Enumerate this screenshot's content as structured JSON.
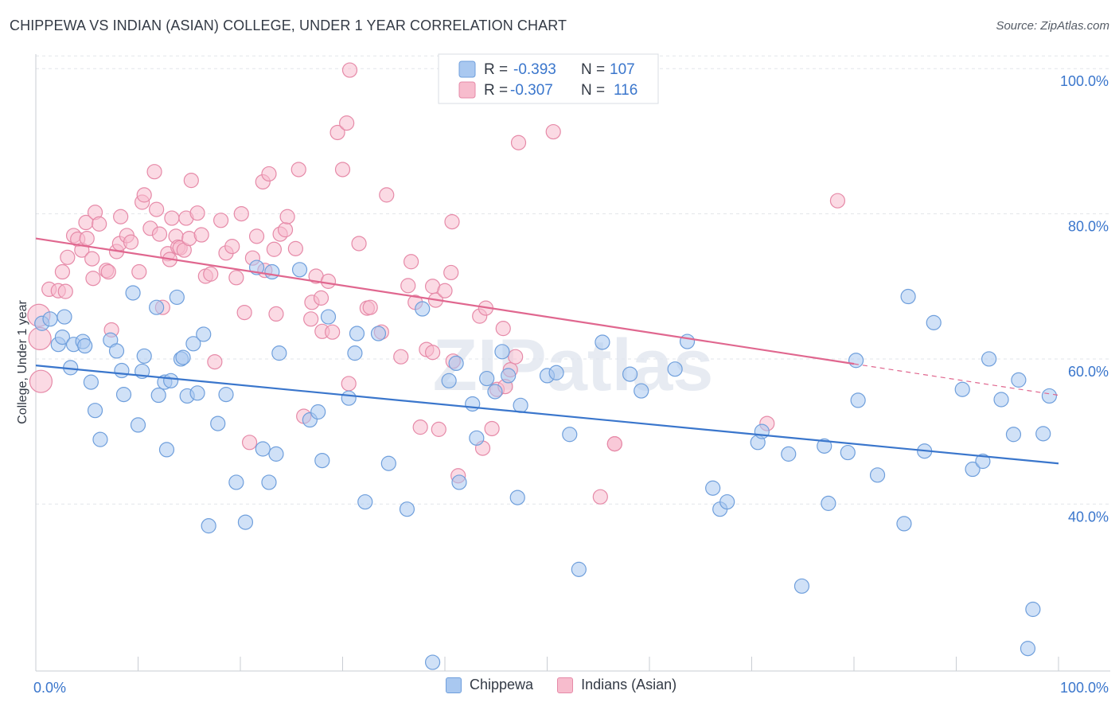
{
  "title": "CHIPPEWA VS INDIAN (ASIAN) COLLEGE, UNDER 1 YEAR CORRELATION CHART",
  "source": "Source: ZipAtlas.com",
  "watermark": "ZIPatlas",
  "colors": {
    "blue_fill": "#a9c8f0",
    "blue_stroke": "#6f9fdc",
    "blue_line": "#3a76cc",
    "pink_fill": "#f7bccd",
    "pink_stroke": "#e68aa8",
    "pink_line": "#e0678f",
    "tick_text": "#3a76cc",
    "grid": "#e2e5ea"
  },
  "legend_top": {
    "rows": [
      {
        "r_label": "R =",
        "r_value": "-0.393",
        "n_label": "N =",
        "n_value": "107"
      },
      {
        "r_label": "R =",
        "r_value": "-0.307",
        "n_label": "N =",
        "n_value": "116"
      }
    ]
  },
  "chart_data": {
    "type": "scatter",
    "title": "CHIPPEWA VS INDIAN (ASIAN) COLLEGE, UNDER 1 YEAR CORRELATION CHART",
    "xlabel": "",
    "ylabel": "College, Under 1 year",
    "xlim": [
      0,
      100
    ],
    "ylim": [
      17,
      102
    ],
    "x_tick_labels": [
      "0.0%",
      "100.0%"
    ],
    "y_ticks": [
      40,
      60,
      80,
      100
    ],
    "y_tick_labels": [
      "40.0%",
      "60.0%",
      "80.0%",
      "100.0%"
    ],
    "grid": true,
    "legend_position": "top-center",
    "series": [
      {
        "name": "Chippewa",
        "color": "#a9c8f0",
        "trend": {
          "x": [
            0,
            100
          ],
          "y": [
            59.1,
            45.6
          ],
          "dashed_from": null
        },
        "points": [
          [
            0.6,
            64.9
          ],
          [
            1.4,
            65.5
          ],
          [
            2.2,
            62.0
          ],
          [
            2.6,
            63.0
          ],
          [
            2.8,
            65.8
          ],
          [
            3.4,
            58.8
          ],
          [
            3.7,
            62.0
          ],
          [
            4.6,
            62.4
          ],
          [
            4.8,
            61.8
          ],
          [
            5.4,
            56.8
          ],
          [
            5.8,
            52.9
          ],
          [
            6.3,
            48.9
          ],
          [
            7.3,
            62.6
          ],
          [
            7.9,
            61.1
          ],
          [
            8.4,
            58.4
          ],
          [
            8.6,
            55.1
          ],
          [
            9.5,
            69.1
          ],
          [
            10.0,
            50.9
          ],
          [
            10.4,
            58.3
          ],
          [
            10.6,
            60.4
          ],
          [
            11.8,
            67.1
          ],
          [
            12.0,
            55.0
          ],
          [
            12.6,
            56.8
          ],
          [
            12.8,
            47.5
          ],
          [
            13.2,
            57.0
          ],
          [
            13.8,
            68.5
          ],
          [
            14.2,
            60.0
          ],
          [
            14.4,
            60.2
          ],
          [
            14.8,
            54.9
          ],
          [
            15.4,
            62.1
          ],
          [
            15.8,
            55.3
          ],
          [
            16.4,
            63.4
          ],
          [
            16.9,
            37.0
          ],
          [
            17.8,
            51.1
          ],
          [
            18.6,
            55.1
          ],
          [
            19.6,
            43.0
          ],
          [
            20.5,
            37.5
          ],
          [
            21.6,
            72.6
          ],
          [
            22.2,
            47.6
          ],
          [
            22.8,
            43.0
          ],
          [
            23.5,
            46.9
          ],
          [
            23.1,
            72.0
          ],
          [
            23.8,
            60.8
          ],
          [
            25.8,
            72.3
          ],
          [
            26.8,
            51.6
          ],
          [
            27.6,
            52.7
          ],
          [
            28.0,
            46.0
          ],
          [
            28.6,
            65.8
          ],
          [
            30.6,
            54.6
          ],
          [
            31.2,
            60.8
          ],
          [
            31.4,
            63.5
          ],
          [
            32.2,
            40.3
          ],
          [
            33.5,
            63.5
          ],
          [
            34.5,
            45.6
          ],
          [
            36.3,
            39.3
          ],
          [
            37.8,
            66.9
          ],
          [
            38.8,
            18.2
          ],
          [
            40.4,
            57.0
          ],
          [
            41.1,
            59.4
          ],
          [
            41.4,
            43.0
          ],
          [
            42.7,
            53.8
          ],
          [
            43.1,
            49.1
          ],
          [
            44.1,
            57.3
          ],
          [
            44.9,
            55.5
          ],
          [
            45.6,
            61.0
          ],
          [
            46.2,
            57.7
          ],
          [
            47.1,
            40.9
          ],
          [
            47.4,
            53.6
          ],
          [
            50.0,
            57.7
          ],
          [
            50.9,
            58.1
          ],
          [
            52.2,
            49.6
          ],
          [
            53.1,
            31.0
          ],
          [
            55.4,
            62.3
          ],
          [
            58.1,
            57.9
          ],
          [
            59.2,
            55.6
          ],
          [
            62.5,
            58.6
          ],
          [
            63.7,
            62.4
          ],
          [
            66.2,
            42.2
          ],
          [
            66.9,
            39.3
          ],
          [
            67.6,
            40.3
          ],
          [
            70.6,
            48.5
          ],
          [
            71.0,
            50.0
          ],
          [
            73.6,
            46.9
          ],
          [
            74.9,
            28.7
          ],
          [
            77.1,
            48.0
          ],
          [
            77.5,
            40.1
          ],
          [
            79.4,
            47.1
          ],
          [
            80.2,
            59.8
          ],
          [
            80.4,
            54.3
          ],
          [
            82.3,
            44.0
          ],
          [
            84.9,
            37.3
          ],
          [
            85.3,
            68.6
          ],
          [
            86.9,
            47.3
          ],
          [
            87.8,
            65.0
          ],
          [
            90.6,
            55.8
          ],
          [
            91.6,
            44.8
          ],
          [
            92.6,
            45.9
          ],
          [
            93.2,
            60.0
          ],
          [
            94.4,
            54.4
          ],
          [
            95.6,
            49.6
          ],
          [
            96.1,
            57.1
          ],
          [
            97.5,
            25.5
          ],
          [
            98.5,
            49.7
          ],
          [
            99.1,
            54.9
          ],
          [
            97.0,
            20.1
          ]
        ]
      },
      {
        "name": "Indians (Asian)",
        "color": "#f7bccd",
        "trend": {
          "x": [
            0,
            100
          ],
          "y": [
            76.6,
            55.0
          ],
          "dashed_from": 80
        },
        "points": [
          [
            0.3,
            66.0
          ],
          [
            0.4,
            62.8
          ],
          [
            0.5,
            56.9
          ],
          [
            1.3,
            69.6
          ],
          [
            2.2,
            69.4
          ],
          [
            2.6,
            72.0
          ],
          [
            2.9,
            69.3
          ],
          [
            3.1,
            74.0
          ],
          [
            3.7,
            77.0
          ],
          [
            4.1,
            76.5
          ],
          [
            4.5,
            75.0
          ],
          [
            4.9,
            78.8
          ],
          [
            5.0,
            76.6
          ],
          [
            5.5,
            73.8
          ],
          [
            5.6,
            71.1
          ],
          [
            5.8,
            80.2
          ],
          [
            6.2,
            78.6
          ],
          [
            6.9,
            72.2
          ],
          [
            7.1,
            72.0
          ],
          [
            7.4,
            64.0
          ],
          [
            7.9,
            74.8
          ],
          [
            8.2,
            75.9
          ],
          [
            8.3,
            79.6
          ],
          [
            8.9,
            77.0
          ],
          [
            9.3,
            76.1
          ],
          [
            10.1,
            72.0
          ],
          [
            10.4,
            81.6
          ],
          [
            10.6,
            82.6
          ],
          [
            11.2,
            78.0
          ],
          [
            11.6,
            85.8
          ],
          [
            11.8,
            80.6
          ],
          [
            12.1,
            77.2
          ],
          [
            12.4,
            67.1
          ],
          [
            12.9,
            74.5
          ],
          [
            13.1,
            73.7
          ],
          [
            13.3,
            79.4
          ],
          [
            13.7,
            76.9
          ],
          [
            13.9,
            75.4
          ],
          [
            14.1,
            75.3
          ],
          [
            14.5,
            75.0
          ],
          [
            14.7,
            79.4
          ],
          [
            15.0,
            76.6
          ],
          [
            15.2,
            84.6
          ],
          [
            15.8,
            80.1
          ],
          [
            16.2,
            77.1
          ],
          [
            16.6,
            71.4
          ],
          [
            17.1,
            71.7
          ],
          [
            17.5,
            59.6
          ],
          [
            18.1,
            79.1
          ],
          [
            18.6,
            74.6
          ],
          [
            19.2,
            75.5
          ],
          [
            19.6,
            71.2
          ],
          [
            20.1,
            80.0
          ],
          [
            20.4,
            66.4
          ],
          [
            20.9,
            48.5
          ],
          [
            21.2,
            73.9
          ],
          [
            21.6,
            76.9
          ],
          [
            22.2,
            84.4
          ],
          [
            22.4,
            72.2
          ],
          [
            22.8,
            85.5
          ],
          [
            23.3,
            75.1
          ],
          [
            23.5,
            66.2
          ],
          [
            23.9,
            77.2
          ],
          [
            24.4,
            77.8
          ],
          [
            24.6,
            79.6
          ],
          [
            25.4,
            75.2
          ],
          [
            25.7,
            86.1
          ],
          [
            26.2,
            52.1
          ],
          [
            26.9,
            65.5
          ],
          [
            27.0,
            67.8
          ],
          [
            27.4,
            71.4
          ],
          [
            27.9,
            68.4
          ],
          [
            28.0,
            63.8
          ],
          [
            28.6,
            70.7
          ],
          [
            29.0,
            63.7
          ],
          [
            29.5,
            91.2
          ],
          [
            30.0,
            86.1
          ],
          [
            30.4,
            92.5
          ],
          [
            30.6,
            56.6
          ],
          [
            30.7,
            99.8
          ],
          [
            31.6,
            75.9
          ],
          [
            32.4,
            67.0
          ],
          [
            32.7,
            67.1
          ],
          [
            33.8,
            63.7
          ],
          [
            34.3,
            82.6
          ],
          [
            35.7,
            60.3
          ],
          [
            36.4,
            70.1
          ],
          [
            36.7,
            73.4
          ],
          [
            37.1,
            67.8
          ],
          [
            37.6,
            50.6
          ],
          [
            38.2,
            61.3
          ],
          [
            38.8,
            70.0
          ],
          [
            39.1,
            68.1
          ],
          [
            39.4,
            50.3
          ],
          [
            40.0,
            69.4
          ],
          [
            40.6,
            71.9
          ],
          [
            40.7,
            78.9
          ],
          [
            40.8,
            59.7
          ],
          [
            41.3,
            43.9
          ],
          [
            43.4,
            65.9
          ],
          [
            43.7,
            47.7
          ],
          [
            44.0,
            67.0
          ],
          [
            44.6,
            50.4
          ],
          [
            45.1,
            55.8
          ],
          [
            45.7,
            64.2
          ],
          [
            45.9,
            56.2
          ],
          [
            46.4,
            58.5
          ],
          [
            46.9,
            60.3
          ],
          [
            47.2,
            89.8
          ],
          [
            50.6,
            91.3
          ],
          [
            55.2,
            41.0
          ],
          [
            56.6,
            48.3
          ],
          [
            56.6,
            48.3
          ],
          [
            71.5,
            51.1
          ],
          [
            78.4,
            81.8
          ],
          [
            38.8,
            60.9
          ]
        ]
      }
    ]
  },
  "legend_bottom": {
    "items": [
      {
        "label": "Chippewa"
      },
      {
        "label": "Indians (Asian)"
      }
    ]
  }
}
